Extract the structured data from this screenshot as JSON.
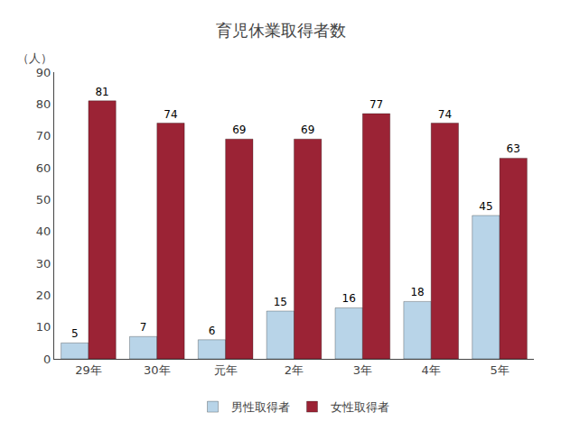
{
  "chart_data": {
    "type": "bar",
    "title": "育児休業取得者数",
    "ylabel": "（人）",
    "categories": [
      "29年",
      "30年",
      "元年",
      "2年",
      "3年",
      "4年",
      "5年"
    ],
    "series": [
      {
        "name": "男性取得者",
        "color": "#b8d4e8",
        "values": [
          5,
          7,
          6,
          15,
          16,
          18,
          45
        ]
      },
      {
        "name": "女性取得者",
        "color": "#9b2335",
        "values": [
          81,
          74,
          69,
          69,
          77,
          74,
          63
        ]
      }
    ],
    "ylim": [
      0,
      90
    ],
    "yticks": [
      0,
      10,
      20,
      30,
      40,
      50,
      60,
      70,
      80,
      90
    ],
    "grid": false,
    "legend": "bottom",
    "data_labels": true
  }
}
